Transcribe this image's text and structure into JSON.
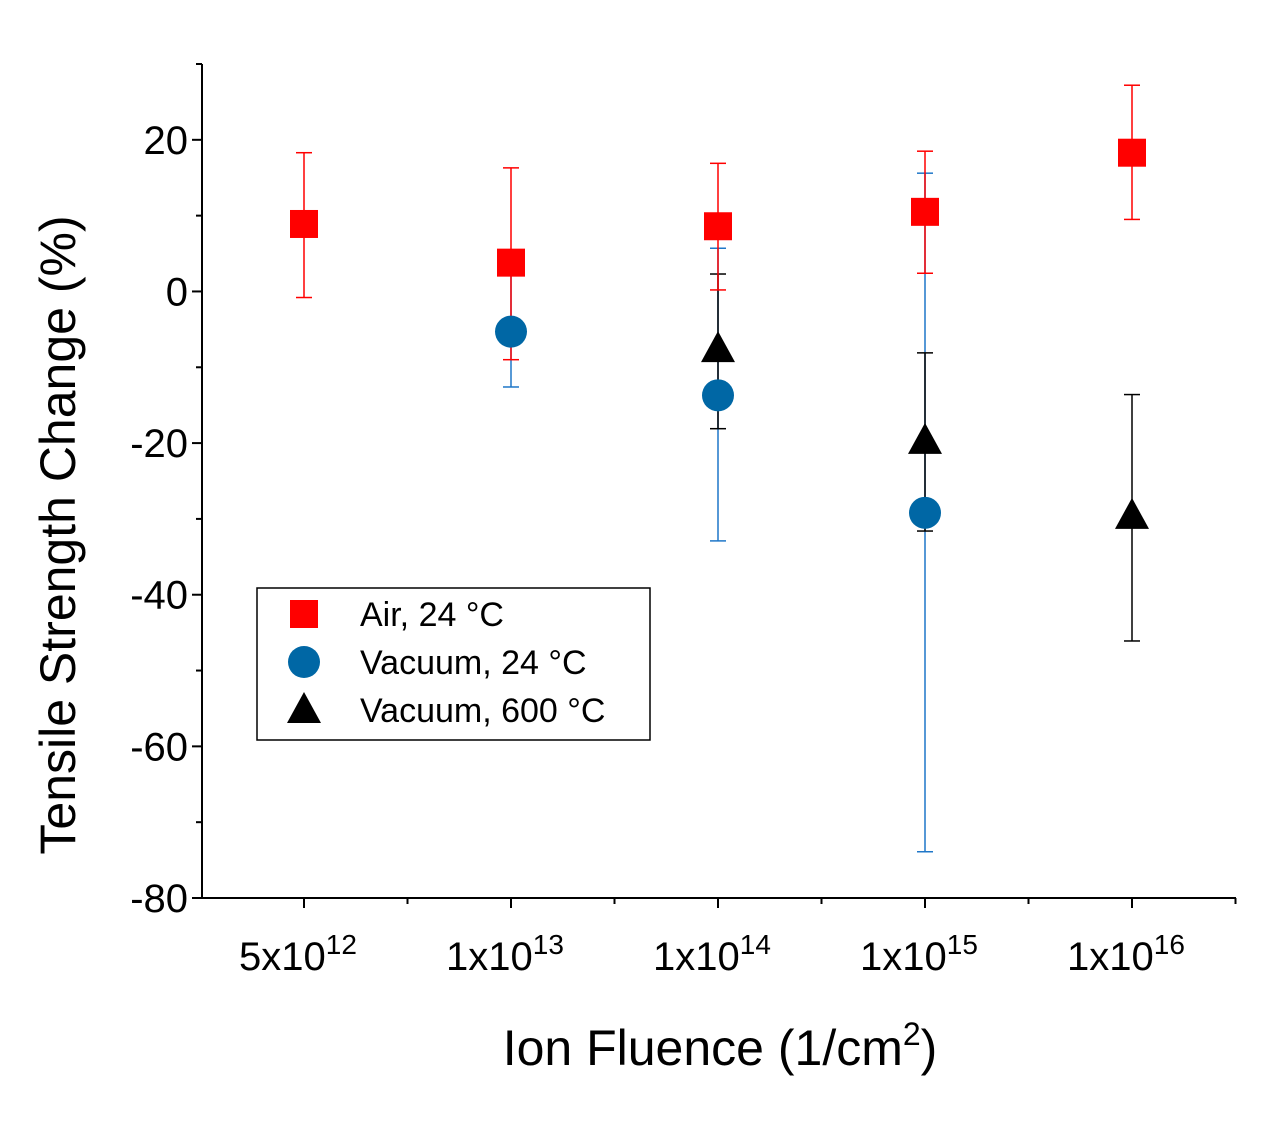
{
  "chart_data": {
    "type": "scatter",
    "title": "",
    "xlabel": "Ion Fluence (1/cm",
    "xlabel_sup": "2",
    "xlabel_suffix": ")",
    "ylabel": "Tensile Strength Change (%)",
    "ylim": [
      -80,
      30
    ],
    "yticks": [
      -80,
      -60,
      -40,
      -20,
      0,
      20
    ],
    "categories": [
      {
        "base": "5x10",
        "exp": "12"
      },
      {
        "base": "1x10",
        "exp": "13"
      },
      {
        "base": "1x10",
        "exp": "14"
      },
      {
        "base": "1x10",
        "exp": "15"
      },
      {
        "base": "1x10",
        "exp": "16"
      }
    ],
    "legend_position": "lower-left",
    "series": [
      {
        "name": "Air, 24 °C",
        "marker": "square",
        "color": "#ff0000",
        "error_color": "#ff0000",
        "points": [
          {
            "x": 0,
            "y": 8.9,
            "err_low": -0.8,
            "err_high": 18.3
          },
          {
            "x": 1,
            "y": 3.8,
            "err_low": -9.0,
            "err_high": 16.3
          },
          {
            "x": 2,
            "y": 8.6,
            "err_low": 0.2,
            "err_high": 16.9
          },
          {
            "x": 3,
            "y": 10.5,
            "err_low": 2.4,
            "err_high": 18.5
          },
          {
            "x": 4,
            "y": 18.3,
            "err_low": 9.5,
            "err_high": 27.2
          }
        ]
      },
      {
        "name": "Vacuum,  24 °C",
        "marker": "circle",
        "color": "#0067a5",
        "error_color": "#1f77c8",
        "points": [
          {
            "x": 1,
            "y": -5.3,
            "err_low": -12.6,
            "err_high": 2.1
          },
          {
            "x": 2,
            "y": -13.7,
            "err_low": -32.9,
            "err_high": 5.7
          },
          {
            "x": 3,
            "y": -29.2,
            "err_low": -73.9,
            "err_high": 15.6
          }
        ]
      },
      {
        "name": "Vacuum, 600 °C",
        "marker": "triangle",
        "color": "#000000",
        "error_color": "#000000",
        "points": [
          {
            "x": 2,
            "y": -7.6,
            "err_low": -18.1,
            "err_high": 2.3
          },
          {
            "x": 3,
            "y": -19.7,
            "err_low": -31.6,
            "err_high": -8.1
          },
          {
            "x": 4,
            "y": -29.6,
            "err_low": -46.1,
            "err_high": -13.6
          }
        ]
      }
    ]
  }
}
